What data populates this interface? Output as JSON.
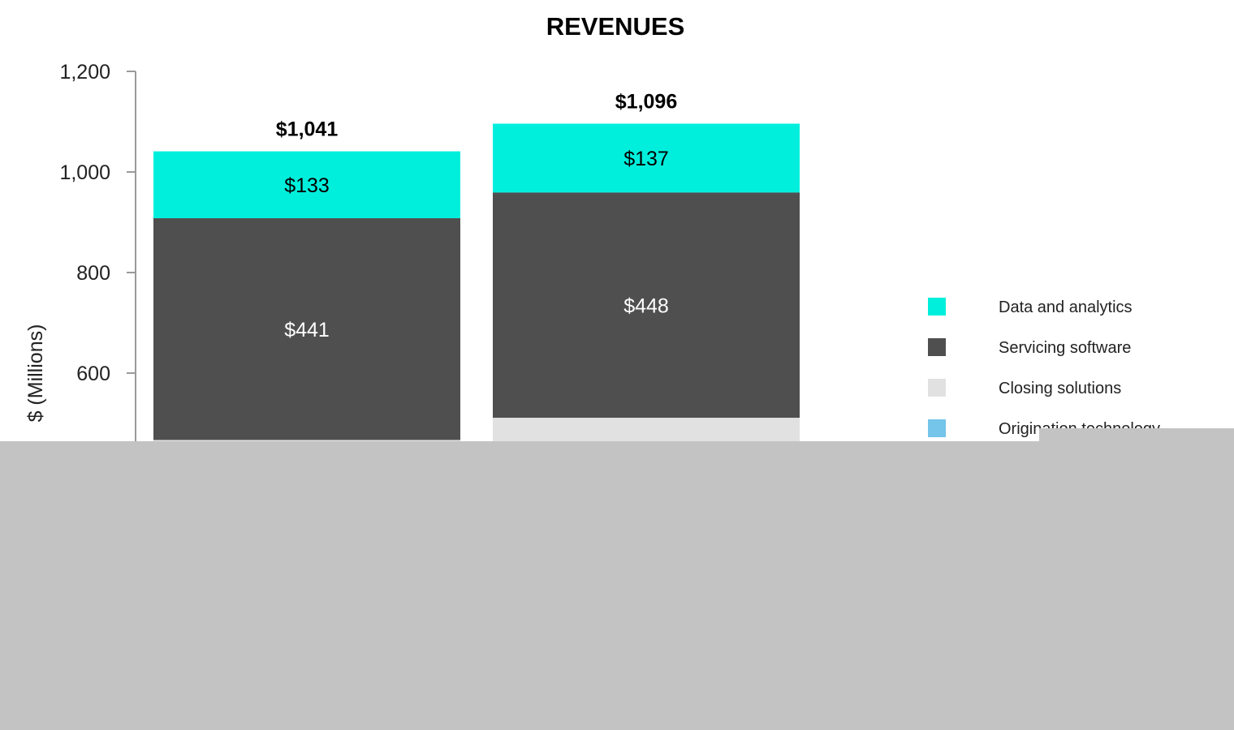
{
  "chart_data": {
    "type": "bar",
    "stacked": true,
    "title": "REVENUES",
    "ylabel": "$ (Millions)",
    "ylim": [
      0,
      1200
    ],
    "yticks": [
      600,
      800,
      1000,
      1200
    ],
    "ytick_labels": [
      "600",
      "800",
      "1,000",
      "1,200"
    ],
    "categories": [
      "",
      ""
    ],
    "totals": [
      1041,
      1096
    ],
    "total_labels": [
      "$1,041",
      "$1,096"
    ],
    "legend_position": "right",
    "series": [
      {
        "name": "Origination technology",
        "color": "#75c4ea",
        "values": [
          null,
          null
        ],
        "labels": [
          "",
          ""
        ],
        "label_color": "#000000"
      },
      {
        "name": "Closing solutions",
        "color": "#e1e1e1",
        "values": [
          null,
          511
        ],
        "labels": [
          "",
          ""
        ],
        "label_color": "#000000"
      },
      {
        "name": "Servicing software",
        "color": "#4f4f4f",
        "values": [
          441,
          448
        ],
        "labels": [
          "$441",
          "$448"
        ],
        "label_color": "#ffffff"
      },
      {
        "name": "Data and analytics",
        "color": "#00efdc",
        "values": [
          133,
          137
        ],
        "labels": [
          "$133",
          "$137"
        ],
        "label_color": "#000000"
      }
    ],
    "legend_order": [
      "Data and analytics",
      "Servicing software",
      "Closing solutions",
      "Origination technology"
    ]
  },
  "colors": {
    "occluder": "#c3c3c3",
    "axis": "#9a9a9a"
  }
}
